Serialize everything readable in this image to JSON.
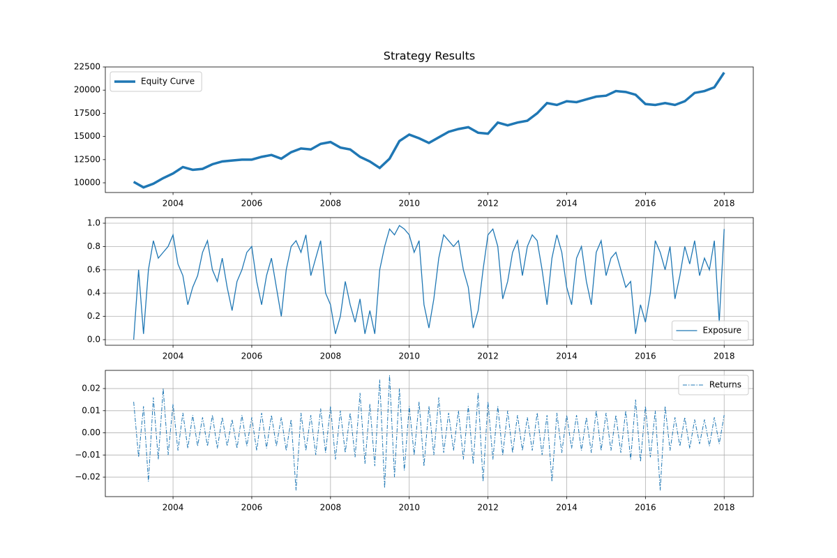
{
  "chart_data": [
    {
      "type": "line",
      "title": "Strategy Results",
      "legend": "upper left",
      "grid": false,
      "x": [
        2003.0,
        2003.25,
        2003.5,
        2003.75,
        2004.0,
        2004.25,
        2004.5,
        2004.75,
        2005.0,
        2005.25,
        2005.5,
        2005.75,
        2006.0,
        2006.25,
        2006.5,
        2006.75,
        2007.0,
        2007.25,
        2007.5,
        2007.75,
        2008.0,
        2008.25,
        2008.5,
        2008.75,
        2009.0,
        2009.25,
        2009.5,
        2009.75,
        2010.0,
        2010.25,
        2010.5,
        2010.75,
        2011.0,
        2011.25,
        2011.5,
        2011.75,
        2012.0,
        2012.25,
        2012.5,
        2012.75,
        2013.0,
        2013.25,
        2013.5,
        2013.75,
        2014.0,
        2014.25,
        2014.5,
        2014.75,
        2015.0,
        2015.25,
        2015.5,
        2015.75,
        2016.0,
        2016.25,
        2016.5,
        2016.75,
        2017.0,
        2017.25,
        2017.5,
        2017.75,
        2018.0
      ],
      "series": [
        {
          "name": "Equity Curve",
          "color": "#1f77b4",
          "linewidth": 3.5,
          "linestyle": "solid",
          "values": [
            10100,
            9500,
            9900,
            10500,
            11000,
            11700,
            11400,
            11500,
            12000,
            12300,
            12400,
            12500,
            12500,
            12800,
            13000,
            12600,
            13300,
            13700,
            13600,
            14200,
            14400,
            13800,
            13600,
            12800,
            12300,
            11600,
            12600,
            14500,
            15200,
            14800,
            14300,
            14900,
            15500,
            15800,
            16000,
            15400,
            15300,
            16500,
            16200,
            16500,
            16700,
            17500,
            18600,
            18400,
            18800,
            18700,
            19000,
            19300,
            19400,
            19900,
            19800,
            19500,
            18500,
            18400,
            18600,
            18400,
            18800,
            19700,
            19900,
            20300,
            21900
          ]
        }
      ],
      "xlim": [
        2002.28,
        2018.74
      ],
      "xticks": [
        2004,
        2006,
        2008,
        2010,
        2012,
        2014,
        2016,
        2018
      ],
      "ylim": [
        8950,
        22500
      ],
      "yticks": [
        10000,
        12500,
        15000,
        17500,
        20000,
        22500
      ]
    },
    {
      "type": "line",
      "legend": "lower right",
      "grid": true,
      "x": [
        2003.0,
        2003.125,
        2003.25,
        2003.375,
        2003.5,
        2003.625,
        2003.75,
        2003.875,
        2004.0,
        2004.125,
        2004.25,
        2004.375,
        2004.5,
        2004.625,
        2004.75,
        2004.875,
        2005.0,
        2005.125,
        2005.25,
        2005.375,
        2005.5,
        2005.625,
        2005.75,
        2005.875,
        2006.0,
        2006.125,
        2006.25,
        2006.375,
        2006.5,
        2006.625,
        2006.75,
        2006.875,
        2007.0,
        2007.125,
        2007.25,
        2007.375,
        2007.5,
        2007.625,
        2007.75,
        2007.875,
        2008.0,
        2008.125,
        2008.25,
        2008.375,
        2008.5,
        2008.625,
        2008.75,
        2008.875,
        2009.0,
        2009.125,
        2009.25,
        2009.375,
        2009.5,
        2009.625,
        2009.75,
        2009.875,
        2010.0,
        2010.125,
        2010.25,
        2010.375,
        2010.5,
        2010.625,
        2010.75,
        2010.875,
        2011.0,
        2011.125,
        2011.25,
        2011.375,
        2011.5,
        2011.625,
        2011.75,
        2011.875,
        2012.0,
        2012.125,
        2012.25,
        2012.375,
        2012.5,
        2012.625,
        2012.75,
        2012.875,
        2013.0,
        2013.125,
        2013.25,
        2013.375,
        2013.5,
        2013.625,
        2013.75,
        2013.875,
        2014.0,
        2014.125,
        2014.25,
        2014.375,
        2014.5,
        2014.625,
        2014.75,
        2014.875,
        2015.0,
        2015.125,
        2015.25,
        2015.375,
        2015.5,
        2015.625,
        2015.75,
        2015.875,
        2016.0,
        2016.125,
        2016.25,
        2016.375,
        2016.5,
        2016.625,
        2016.75,
        2016.875,
        2017.0,
        2017.125,
        2017.25,
        2017.375,
        2017.5,
        2017.625,
        2017.75,
        2017.875,
        2018.0
      ],
      "series": [
        {
          "name": "Exposure",
          "color": "#1f77b4",
          "linewidth": 1.3,
          "linestyle": "solid",
          "values": [
            0,
            0.6,
            0.05,
            0.6,
            0.85,
            0.7,
            0.75,
            0.8,
            0.9,
            0.65,
            0.55,
            0.3,
            0.45,
            0.55,
            0.75,
            0.85,
            0.6,
            0.5,
            0.7,
            0.45,
            0.25,
            0.5,
            0.6,
            0.75,
            0.8,
            0.5,
            0.3,
            0.55,
            0.7,
            0.45,
            0.2,
            0.6,
            0.8,
            0.85,
            0.75,
            0.9,
            0.55,
            0.7,
            0.85,
            0.4,
            0.3,
            0.05,
            0.2,
            0.5,
            0.3,
            0.15,
            0.35,
            0.05,
            0.25,
            0.05,
            0.6,
            0.8,
            0.95,
            0.9,
            0.98,
            0.95,
            0.9,
            0.75,
            0.85,
            0.3,
            0.1,
            0.35,
            0.7,
            0.9,
            0.85,
            0.8,
            0.85,
            0.6,
            0.45,
            0.1,
            0.25,
            0.6,
            0.9,
            0.95,
            0.8,
            0.35,
            0.5,
            0.75,
            0.85,
            0.55,
            0.8,
            0.9,
            0.85,
            0.6,
            0.3,
            0.7,
            0.9,
            0.75,
            0.45,
            0.3,
            0.7,
            0.8,
            0.5,
            0.3,
            0.75,
            0.85,
            0.55,
            0.7,
            0.75,
            0.6,
            0.45,
            0.5,
            0.05,
            0.3,
            0.15,
            0.4,
            0.85,
            0.75,
            0.6,
            0.8,
            0.35,
            0.55,
            0.8,
            0.65,
            0.85,
            0.55,
            0.7,
            0.6,
            0.85,
            0.15,
            0.95
          ]
        }
      ],
      "xlim": [
        2002.28,
        2018.74
      ],
      "xticks": [
        2004,
        2006,
        2008,
        2010,
        2012,
        2014,
        2016,
        2018
      ],
      "ylim": [
        -0.048,
        1.048
      ],
      "yticks": [
        {
          "value": 0,
          "label": "0.0"
        },
        0.2,
        0.4,
        0.6,
        0.8,
        {
          "value": 1,
          "label": "1.0"
        }
      ]
    },
    {
      "type": "line",
      "legend": "upper right",
      "grid": true,
      "x": [
        2003.0,
        2003.125,
        2003.25,
        2003.375,
        2003.5,
        2003.625,
        2003.75,
        2003.875,
        2004.0,
        2004.125,
        2004.25,
        2004.375,
        2004.5,
        2004.625,
        2004.75,
        2004.875,
        2005.0,
        2005.125,
        2005.25,
        2005.375,
        2005.5,
        2005.625,
        2005.75,
        2005.875,
        2006.0,
        2006.125,
        2006.25,
        2006.375,
        2006.5,
        2006.625,
        2006.75,
        2006.875,
        2007.0,
        2007.125,
        2007.25,
        2007.375,
        2007.5,
        2007.625,
        2007.75,
        2007.875,
        2008.0,
        2008.125,
        2008.25,
        2008.375,
        2008.5,
        2008.625,
        2008.75,
        2008.875,
        2009.0,
        2009.125,
        2009.25,
        2009.375,
        2009.5,
        2009.625,
        2009.75,
        2009.875,
        2010.0,
        2010.125,
        2010.25,
        2010.375,
        2010.5,
        2010.625,
        2010.75,
        2010.875,
        2011.0,
        2011.125,
        2011.25,
        2011.375,
        2011.5,
        2011.625,
        2011.75,
        2011.875,
        2012.0,
        2012.125,
        2012.25,
        2012.375,
        2012.5,
        2012.625,
        2012.75,
        2012.875,
        2013.0,
        2013.125,
        2013.25,
        2013.375,
        2013.5,
        2013.625,
        2013.75,
        2013.875,
        2014.0,
        2014.125,
        2014.25,
        2014.375,
        2014.5,
        2014.625,
        2014.75,
        2014.875,
        2015.0,
        2015.125,
        2015.25,
        2015.375,
        2015.5,
        2015.625,
        2015.75,
        2015.875,
        2016.0,
        2016.125,
        2016.25,
        2016.375,
        2016.5,
        2016.625,
        2016.75,
        2016.875,
        2017.0,
        2017.125,
        2017.25,
        2017.375,
        2017.5,
        2017.625,
        2017.75,
        2017.875,
        2018.0
      ],
      "series": [
        {
          "name": "Returns",
          "color": "#1f77b4",
          "linewidth": 1,
          "linestyle": "dashdot",
          "values": [
            0.014,
            -0.011,
            0.012,
            -0.022,
            0.016,
            -0.012,
            0.02,
            -0.01,
            0.013,
            -0.008,
            0.009,
            -0.007,
            0.008,
            -0.006,
            0.007,
            -0.006,
            0.008,
            -0.007,
            0.007,
            -0.006,
            0.006,
            -0.007,
            0.008,
            -0.006,
            0.007,
            -0.008,
            0.009,
            -0.007,
            0.008,
            -0.006,
            0.007,
            -0.008,
            0.006,
            -0.026,
            0.009,
            -0.008,
            0.008,
            -0.01,
            0.011,
            -0.009,
            0.012,
            -0.012,
            0.01,
            -0.009,
            0.009,
            -0.011,
            0.018,
            -0.014,
            0.013,
            -0.015,
            0.024,
            -0.025,
            0.026,
            -0.02,
            0.02,
            -0.017,
            0.012,
            -0.01,
            0.014,
            -0.015,
            0.012,
            -0.01,
            0.016,
            -0.009,
            0.009,
            -0.008,
            0.01,
            -0.012,
            0.012,
            -0.014,
            0.018,
            -0.022,
            0.014,
            -0.012,
            0.012,
            -0.01,
            0.01,
            -0.009,
            0.008,
            -0.008,
            0.007,
            -0.008,
            0.009,
            -0.01,
            0.008,
            -0.022,
            0.009,
            -0.009,
            0.008,
            -0.007,
            0.008,
            -0.008,
            0.007,
            -0.009,
            0.01,
            -0.008,
            0.009,
            -0.008,
            0.008,
            -0.009,
            0.01,
            -0.012,
            0.015,
            -0.013,
            0.012,
            -0.011,
            0.01,
            -0.026,
            0.012,
            -0.008,
            0.007,
            -0.006,
            0.007,
            -0.007,
            0.006,
            -0.005,
            0.006,
            -0.006,
            0.007,
            -0.005,
            0.008
          ]
        }
      ],
      "xlim": [
        2002.28,
        2018.74
      ],
      "xticks": [
        2004,
        2006,
        2008,
        2010,
        2012,
        2014,
        2016,
        2018
      ],
      "ylim": [
        -0.0288,
        0.0282
      ],
      "yticks": [
        {
          "value": -0.02,
          "label": "−0.02"
        },
        {
          "value": -0.01,
          "label": "−0.01"
        },
        {
          "value": 0,
          "label": "0.00"
        },
        0.01,
        0.02
      ]
    }
  ]
}
